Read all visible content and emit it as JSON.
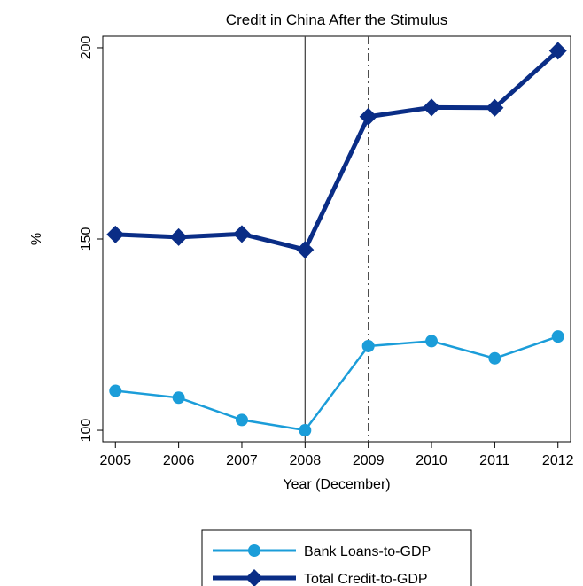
{
  "chart_data": {
    "type": "line",
    "title": "Credit in China After the Stimulus",
    "xlabel": "Year (December)",
    "ylabel": "%",
    "x": [
      2005,
      2006,
      2007,
      2008,
      2009,
      2010,
      2011,
      2012
    ],
    "x_tick_labels": [
      "2005",
      "2006",
      "2007",
      "2008",
      "2009",
      "2010",
      "2011",
      "2012"
    ],
    "xlim": [
      2004.8,
      2012.2
    ],
    "ylim": [
      97,
      203
    ],
    "y_ticks": [
      100,
      150,
      200
    ],
    "y_tick_labels": [
      "100",
      "150",
      "200"
    ],
    "vertical_lines": [
      {
        "x": 2008,
        "style": "solid"
      },
      {
        "x": 2009,
        "style": "dash-dot"
      }
    ],
    "series": [
      {
        "name": "Bank Loans-to-GDP",
        "marker": "circle",
        "color": "#1b9dd9",
        "values": [
          110.3,
          108.5,
          102.7,
          100.0,
          122.0,
          123.3,
          118.8,
          124.5
        ]
      },
      {
        "name": "Total Credit-to-GDP",
        "marker": "diamond",
        "color": "#0a2d86",
        "values": [
          151.2,
          150.5,
          151.3,
          147.2,
          182.0,
          184.4,
          184.3,
          199.2
        ]
      }
    ],
    "legend_position": "bottom-center",
    "grid": false
  }
}
